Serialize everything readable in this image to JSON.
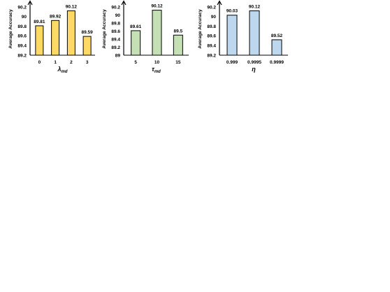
{
  "chart_data": [
    {
      "type": "bar",
      "categories": [
        "0",
        "1",
        "2",
        "3"
      ],
      "values": [
        89.81,
        89.92,
        90.12,
        89.59
      ],
      "data_labels": [
        "89.81",
        "89.92",
        "90.12",
        "89.59"
      ],
      "ylabel": "Average Accuracy",
      "xlabel_symbol": "λ",
      "xlabel_sub": "md",
      "yticks": [
        "89.2",
        "89.4",
        "89.6",
        "89.8",
        "90",
        "90.2"
      ],
      "ylim": [
        89.2,
        90.2
      ],
      "bar_color": "#FFD966",
      "grid": false
    },
    {
      "type": "bar",
      "categories": [
        "5",
        "10",
        "15"
      ],
      "values": [
        89.61,
        90.12,
        89.5
      ],
      "data_labels": [
        "89.61",
        "90.12",
        "89.5"
      ],
      "ylabel": "Average Accuracy",
      "xlabel_symbol": "τ",
      "xlabel_sub": "md",
      "yticks": [
        "89",
        "89.2",
        "89.4",
        "89.6",
        "89.8",
        "90",
        "90.2"
      ],
      "ylim": [
        89.0,
        90.2
      ],
      "bar_color": "#C5E0B4",
      "grid": false
    },
    {
      "type": "bar",
      "categories": [
        "0.999",
        "0.9995",
        "0.9999"
      ],
      "values": [
        90.03,
        90.12,
        89.52
      ],
      "data_labels": [
        "90.03",
        "90.12",
        "89.52"
      ],
      "ylabel": "Average Accuracy",
      "xlabel_symbol": "η",
      "xlabel_sub": "",
      "yticks": [
        "89.2",
        "89.4",
        "89.6",
        "89.8",
        "90",
        "90.2"
      ],
      "ylim": [
        89.2,
        90.2
      ],
      "bar_color": "#BDD7EE",
      "grid": false
    }
  ]
}
